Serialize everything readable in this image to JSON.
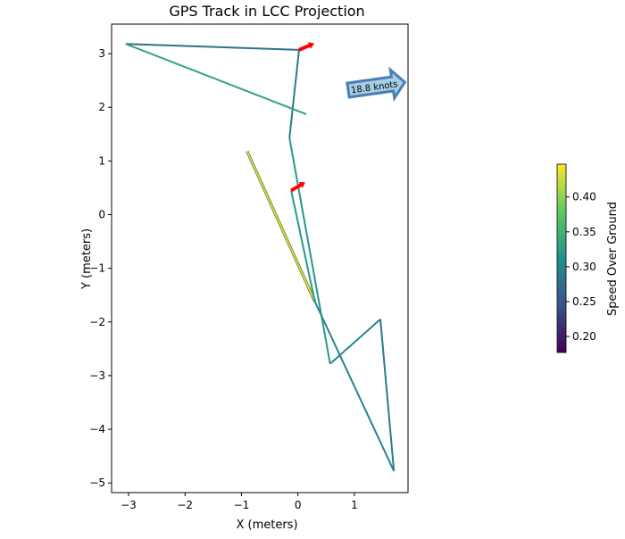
{
  "chart_data": {
    "type": "line",
    "title": "GPS Track in LCC Projection",
    "xlabel": "X (meters)",
    "ylabel": "Y (meters)",
    "xlim": [
      -3.3,
      1.95
    ],
    "ylim": [
      -5.18,
      3.55
    ],
    "xticks": [
      -3,
      -2,
      -1,
      0,
      1
    ],
    "yticks": [
      -5,
      -4,
      -3,
      -2,
      -1,
      0,
      1,
      2,
      3
    ],
    "grid": false,
    "track": {
      "x": [
        -0.9,
        0.3,
        1.7,
        1.46,
        0.57,
        -0.15,
        0.02,
        -3.05,
        0.15
      ],
      "y": [
        1.18,
        -1.62,
        -4.78,
        -1.95,
        -2.78,
        1.43,
        3.07,
        3.18,
        1.87
      ],
      "speed": [
        0.43,
        0.3,
        0.29,
        0.3,
        0.32,
        0.29,
        0.28,
        0.33
      ]
    },
    "extra_segment": {
      "x": [
        -0.12,
        0.3
      ],
      "y": [
        0.45,
        -1.62
      ],
      "speed": 0.32
    },
    "heading_arrows": [
      {
        "x": -0.12,
        "y": 0.45,
        "dx": 0.25,
        "dy": 0.15
      },
      {
        "x": 0.02,
        "y": 3.07,
        "dx": 0.27,
        "dy": 0.12
      }
    ],
    "annotation": {
      "text": "18.8 knots",
      "placement": "top-right",
      "color": "#a6cee3",
      "edge": "#4a7fb5"
    },
    "colorbar": {
      "label": "Speed Over Ground",
      "range": [
        0.177,
        0.447
      ],
      "ticks": [
        "0.20",
        "0.25",
        "0.30",
        "0.35",
        "0.40"
      ],
      "colormap": "viridis"
    },
    "arrow_color": "#ff0000"
  }
}
